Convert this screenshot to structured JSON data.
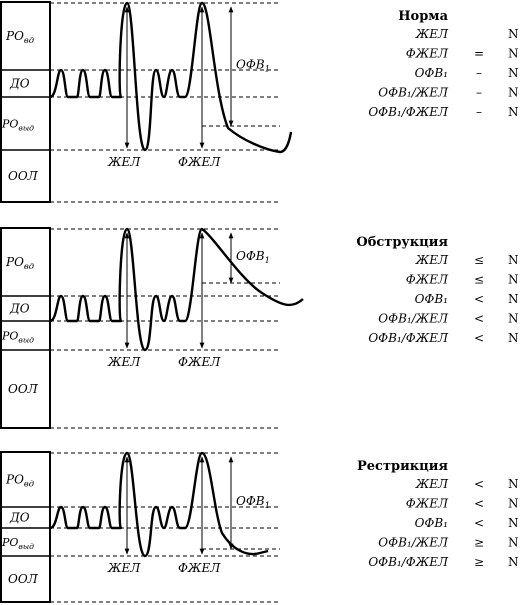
{
  "panels": [
    {
      "id": "norm",
      "volumes": {
        "irv": "РО",
        "irv_sub": "вд",
        "tv": "ДО",
        "erv": "РО",
        "erv_sub": "выд",
        "rv": "ООЛ"
      },
      "curve_labels": {
        "vc": "ЖЕЛ",
        "fvc": "ФЖЕЛ",
        "fev1": "ОФВ",
        "fev1_sub": "1"
      },
      "table": {
        "title": "Норма",
        "rows": [
          {
            "label": "ЖЕЛ",
            "sign": "",
            "value": "N"
          },
          {
            "label": "ФЖЕЛ",
            "sign": "=",
            "value": "N"
          },
          {
            "label": "ОФВ₁",
            "sign": "–",
            "value": "N"
          },
          {
            "label": "ОФВ₁/ЖЕЛ",
            "sign": "–",
            "value": "N"
          },
          {
            "label": "ОФВ₁/ФЖЕЛ",
            "sign": "–",
            "value": "N"
          }
        ]
      }
    },
    {
      "id": "obstruction",
      "volumes": {
        "irv": "РО",
        "irv_sub": "вд",
        "tv": "ДО",
        "erv": "РО",
        "erv_sub": "выд",
        "rv": "ООЛ"
      },
      "curve_labels": {
        "vc": "ЖЕЛ",
        "fvc": "ФЖЕЛ",
        "fev1": "ОФВ",
        "fev1_sub": "1"
      },
      "table": {
        "title": "Обструкция",
        "rows": [
          {
            "label": "ЖЕЛ",
            "sign": "≤",
            "value": "N"
          },
          {
            "label": "ФЖЕЛ",
            "sign": "≤",
            "value": "N"
          },
          {
            "label": "ОФВ₁",
            "sign": "<",
            "value": "N"
          },
          {
            "label": "ОФВ₁/ЖЕЛ",
            "sign": "<",
            "value": "N"
          },
          {
            "label": "ОФВ₁/ФЖЕЛ",
            "sign": "<",
            "value": "N"
          }
        ]
      }
    },
    {
      "id": "restriction",
      "volumes": {
        "irv": "РО",
        "irv_sub": "вд",
        "tv": "ДО",
        "erv": "РО",
        "erv_sub": "выд",
        "rv": "ООЛ"
      },
      "curve_labels": {
        "vc": "ЖЕЛ",
        "fvc": "ФЖЕЛ",
        "fev1": "ОФВ",
        "fev1_sub": "1"
      },
      "table": {
        "title": "Рестрикция",
        "rows": [
          {
            "label": "ЖЕЛ",
            "sign": "<",
            "value": "N"
          },
          {
            "label": "ФЖЕЛ",
            "sign": "<",
            "value": "N"
          },
          {
            "label": "ОФВ₁",
            "sign": "<",
            "value": "N"
          },
          {
            "label": "ОФВ₁/ЖЕЛ",
            "sign": "≥",
            "value": "N"
          },
          {
            "label": "ОФВ₁/ФЖЕЛ",
            "sign": "≥",
            "value": "N"
          }
        ]
      }
    }
  ]
}
